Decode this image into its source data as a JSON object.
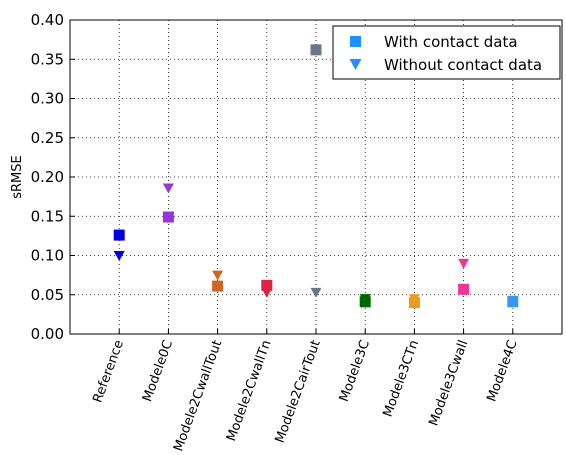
{
  "chart_data": {
    "type": "scatter",
    "ylabel": "sRMSE",
    "xlabel": "",
    "ylim": [
      0.0,
      0.4
    ],
    "yticks": [
      "0.00",
      "0.05",
      "0.10",
      "0.15",
      "0.20",
      "0.25",
      "0.30",
      "0.35",
      "0.40"
    ],
    "grid": true,
    "legend_position": "top-right",
    "categories": [
      "Reference",
      "Modele0C",
      "Modele2CwallTout",
      "Modele2CwallTn",
      "Modele2CairTout",
      "Modele3C",
      "Modele3CTn",
      "Modele3Cwall",
      "Modele4C"
    ],
    "colors": [
      "#0000dd",
      "#9933dd",
      "#cc6622",
      "#dd2244",
      "#667788",
      "#006600",
      "#ee9922",
      "#ee3399",
      "#3399ee"
    ],
    "series": [
      {
        "name": "With contact data",
        "marker": "square",
        "legend_color": "#1e90ff",
        "values": [
          0.126,
          0.149,
          0.061,
          0.062,
          0.362,
          0.041,
          0.04,
          0.057,
          0.041
        ]
      },
      {
        "name": "Without contact data",
        "marker": "triangle-down",
        "legend_color": "#1e90ff",
        "values": [
          0.1,
          0.186,
          0.075,
          0.053,
          0.053,
          0.045,
          0.045,
          0.09,
          0.043
        ]
      }
    ]
  }
}
